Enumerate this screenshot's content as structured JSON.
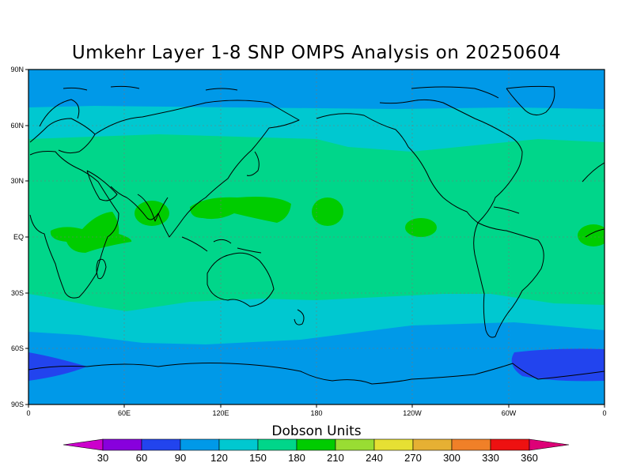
{
  "title": "Umkehr Layer 1-8 SNP OMPS Analysis on 20250604",
  "axes": {
    "y_ticks": [
      "90N",
      "60N",
      "30N",
      "EQ",
      "30S",
      "60S",
      "90S"
    ],
    "x_ticks": [
      "0",
      "60E",
      "120E",
      "180",
      "120W",
      "60W",
      "0"
    ]
  },
  "colorbar": {
    "label": "Dobson Units",
    "ticks": [
      "30",
      "60",
      "90",
      "120",
      "150",
      "180",
      "210",
      "240",
      "270",
      "300",
      "330",
      "360"
    ],
    "colors": [
      "#cc00cc",
      "#8800dd",
      "#2244ee",
      "#0099e8",
      "#00c8d0",
      "#00d68a",
      "#00cc00",
      "#99dd33",
      "#e6e033",
      "#e6b033",
      "#f08028",
      "#ee1111",
      "#dd0077"
    ]
  },
  "field_colors": {
    "band_60_90": "#0099e8",
    "band_90_120": "#00c8d0",
    "band_120_150": "#00d68a",
    "band_150_180": "#00cc00",
    "low_30_60": "#2244ee"
  }
}
